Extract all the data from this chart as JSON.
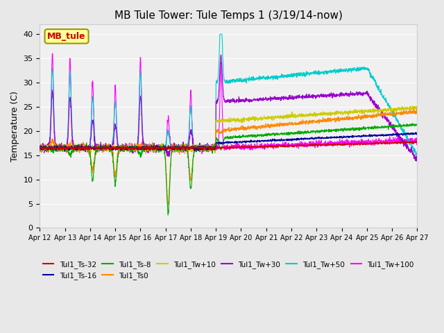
{
  "title": "MB Tule Tower: Tule Temps 1 (3/19/14-now)",
  "ylabel": "Temperature (C)",
  "ylim": [
    0,
    42
  ],
  "yticks": [
    0,
    5,
    10,
    15,
    20,
    25,
    30,
    35,
    40
  ],
  "n_days": 15,
  "date_labels": [
    "Apr 12",
    "Apr 13",
    "Apr 14",
    "Apr 15",
    "Apr 16",
    "Apr 17",
    "Apr 18",
    "Apr 19",
    "Apr 20",
    "Apr 21",
    "Apr 22",
    "Apr 23",
    "Apr 24",
    "Apr 25",
    "Apr 26",
    "Apr 27"
  ],
  "legend_label": "MB_tule",
  "series_colors": {
    "Tul1_Ts-32": "#cc0000",
    "Tul1_Ts-16": "#000099",
    "Tul1_Ts-8": "#00aa00",
    "Tul1_Ts0": "#ff8800",
    "Tul1_Tw+10": "#cccc00",
    "Tul1_Tw+30": "#9900cc",
    "Tul1_Tw+50": "#00cccc",
    "Tul1_Tw+100": "#ff00ff"
  },
  "background_color": "#e8e8e8",
  "plot_bg": "#f0f0f0"
}
